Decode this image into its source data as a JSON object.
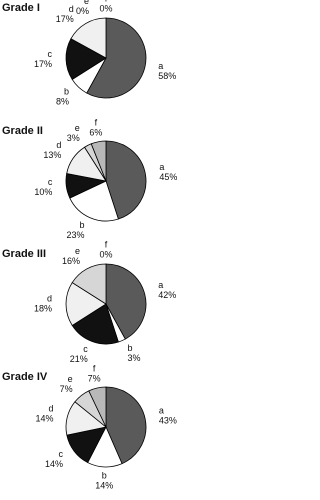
{
  "chart_data": [
    {
      "type": "pie",
      "title": "Grade I",
      "categories": [
        "a",
        "b",
        "c",
        "d",
        "e",
        "f"
      ],
      "values": [
        58,
        8,
        17,
        17,
        0,
        0
      ],
      "value_labels": [
        "58%",
        "8%",
        "17%",
        "17%",
        "0%",
        "0%"
      ],
      "colors": [
        "#5a5a5a",
        "#ffffff",
        "#111111",
        "#f0f0f0",
        "#d6d6d6",
        "#b8b8b8"
      ]
    },
    {
      "type": "pie",
      "title": "Grade II",
      "categories": [
        "a",
        "b",
        "c",
        "d",
        "e",
        "f"
      ],
      "values": [
        45,
        23,
        10,
        13,
        3,
        6
      ],
      "value_labels": [
        "45%",
        "23%",
        "10%",
        "13%",
        "3%",
        "6%"
      ],
      "colors": [
        "#5a5a5a",
        "#ffffff",
        "#111111",
        "#f0f0f0",
        "#d6d6d6",
        "#b8b8b8"
      ]
    },
    {
      "type": "pie",
      "title": "Grade III",
      "categories": [
        "a",
        "b",
        "c",
        "d",
        "e",
        "f"
      ],
      "values": [
        42,
        3,
        21,
        18,
        16,
        0
      ],
      "value_labels": [
        "42%",
        "3%",
        "21%",
        "18%",
        "16%",
        "0%"
      ],
      "colors": [
        "#5a5a5a",
        "#ffffff",
        "#111111",
        "#f0f0f0",
        "#d6d6d6",
        "#b8b8b8"
      ]
    },
    {
      "type": "pie",
      "title": "Grade IV",
      "categories": [
        "a",
        "b",
        "c",
        "d",
        "e",
        "f"
      ],
      "values": [
        43,
        14,
        14,
        14,
        7,
        7
      ],
      "value_labels": [
        "43%",
        "14%",
        "14%",
        "14%",
        "7%",
        "7%"
      ],
      "colors": [
        "#5a5a5a",
        "#ffffff",
        "#111111",
        "#f0f0f0",
        "#d6d6d6",
        "#b8b8b8"
      ]
    }
  ]
}
